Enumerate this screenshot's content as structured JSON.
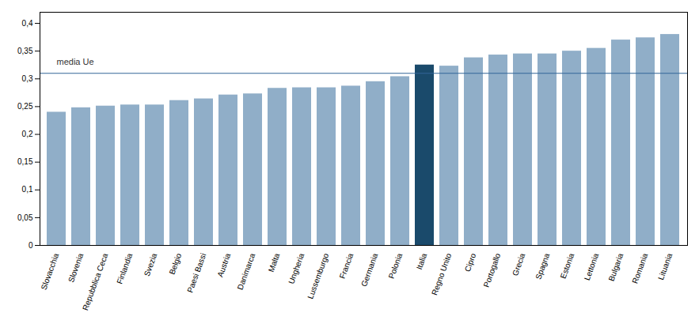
{
  "chart_data": {
    "type": "bar",
    "categories": [
      "Slovacchia",
      "Slovenia",
      "Repubblica Ceca",
      "Finlandia",
      "Svezia",
      "Belgio",
      "Paesi Bassi",
      "Austria",
      "Danimarca",
      "Malta",
      "Ungheria",
      "Lussemburgo",
      "Francia",
      "Germania",
      "Polonia",
      "Italia",
      "Regno Unito",
      "Cipro",
      "Portogallo",
      "Grecia",
      "Spagna",
      "Estonia",
      "Lettonia",
      "Bulgaria",
      "Romania",
      "Lituania"
    ],
    "values": [
      0.24,
      0.248,
      0.251,
      0.253,
      0.253,
      0.261,
      0.264,
      0.271,
      0.273,
      0.283,
      0.284,
      0.284,
      0.287,
      0.295,
      0.304,
      0.325,
      0.323,
      0.338,
      0.343,
      0.345,
      0.345,
      0.35,
      0.355,
      0.37,
      0.374,
      0.38
    ],
    "colors": [
      "#90aec8",
      "#90aec8",
      "#90aec8",
      "#90aec8",
      "#90aec8",
      "#90aec8",
      "#90aec8",
      "#90aec8",
      "#90aec8",
      "#90aec8",
      "#90aec8",
      "#90aec8",
      "#90aec8",
      "#90aec8",
      "#90aec8",
      "#1a4a6b",
      "#90aec8",
      "#90aec8",
      "#90aec8",
      "#90aec8",
      "#90aec8",
      "#90aec8",
      "#90aec8",
      "#90aec8",
      "#90aec8",
      "#90aec8"
    ],
    "reference_line": {
      "value": 0.31,
      "label": "media Ue",
      "color": "#336699"
    },
    "ylim": [
      0,
      0.42
    ],
    "yticks": [
      0,
      {
        "value": 0.05,
        "label": "0,05"
      },
      {
        "value": 0.1,
        "label": "0,1"
      },
      {
        "value": 0.15,
        "label": "0,15"
      },
      {
        "value": 0.2,
        "label": "0,2"
      },
      {
        "value": 0.25,
        "label": "0,25"
      },
      {
        "value": 0.3,
        "label": "0,3"
      },
      {
        "value": 0.35,
        "label": "0,35"
      },
      {
        "value": 0.4,
        "label": "0,4"
      }
    ],
    "grid": false
  }
}
